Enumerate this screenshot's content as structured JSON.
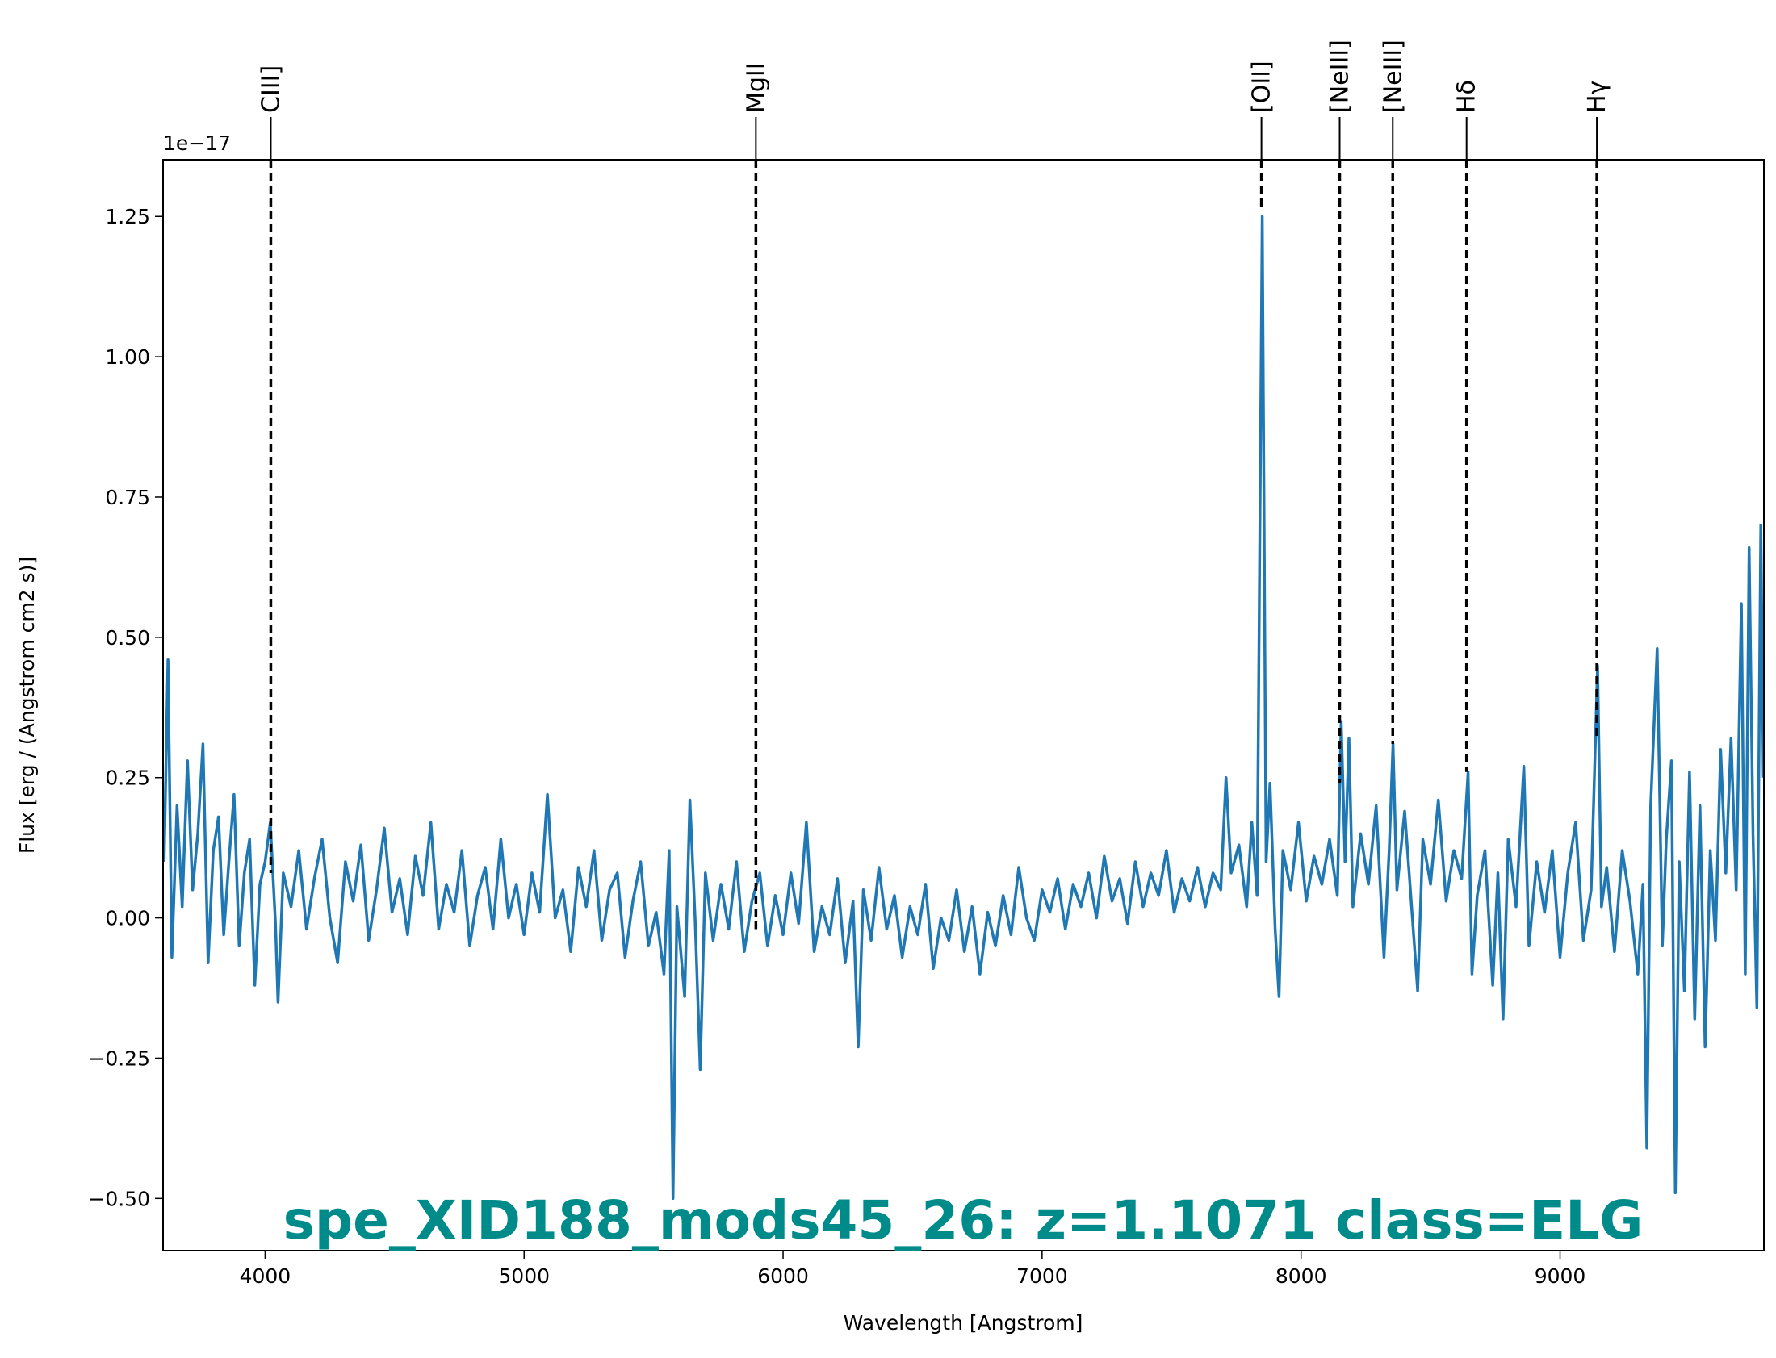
{
  "chart_data": {
    "type": "line",
    "title": "spe_XID188_mods45_26: z=1.1071 class=ELG",
    "xlabel": "Wavelength [Angstrom]",
    "ylabel": "Flux [erg / (Angstrom cm2 s)]",
    "y_offset_label": "1e−17",
    "color": "#1f77b4",
    "title_color": "#008b8b",
    "xlim": [
      3606,
      9787
    ],
    "ylim": [
      -0.593,
      1.351
    ],
    "xticks": [
      4000,
      5000,
      6000,
      7000,
      8000,
      9000
    ],
    "yticks": [
      {
        "value": -0.5,
        "label": "−0.50"
      },
      {
        "value": -0.25,
        "label": "−0.25"
      },
      {
        "value": 0,
        "label": "0.00"
      },
      {
        "value": 0.25,
        "label": "0.25"
      },
      {
        "value": 0.5,
        "label": "0.50"
      },
      {
        "value": 0.75,
        "label": "0.75"
      },
      {
        "value": 1,
        "label": "1.00"
      },
      {
        "value": 1.25,
        "label": "1.25"
      }
    ],
    "lines": [
      {
        "label": "CIII]",
        "x": 4022,
        "ymin": 0.08
      },
      {
        "label": "MgII",
        "x": 5895,
        "ymin": -0.02
      },
      {
        "label": "[OII]",
        "x": 7847,
        "ymin": 1.26
      },
      {
        "label": "[NeIII]",
        "x": 8149,
        "ymin": 0.24
      },
      {
        "label": "[NeIII]",
        "x": 8354,
        "ymin": 0.31
      },
      {
        "label": "Hδ",
        "x": 8639,
        "ymin": 0.26
      },
      {
        "label": "Hγ",
        "x": 9142,
        "ymin": 0.32
      }
    ],
    "x": [
      3610,
      3625,
      3640,
      3660,
      3680,
      3700,
      3720,
      3740,
      3760,
      3780,
      3800,
      3820,
      3840,
      3860,
      3880,
      3900,
      3920,
      3940,
      3960,
      3980,
      4000,
      4020,
      4040,
      4050,
      4070,
      4100,
      4130,
      4160,
      4190,
      4220,
      4250,
      4280,
      4310,
      4340,
      4370,
      4400,
      4430,
      4460,
      4490,
      4520,
      4550,
      4580,
      4610,
      4640,
      4670,
      4700,
      4730,
      4760,
      4790,
      4820,
      4850,
      4880,
      4910,
      4940,
      4970,
      5000,
      5030,
      5060,
      5090,
      5120,
      5150,
      5180,
      5210,
      5240,
      5270,
      5300,
      5330,
      5360,
      5390,
      5420,
      5450,
      5480,
      5510,
      5540,
      5560,
      5575,
      5590,
      5620,
      5640,
      5660,
      5680,
      5700,
      5730,
      5760,
      5790,
      5820,
      5850,
      5880,
      5910,
      5940,
      5970,
      6000,
      6030,
      6060,
      6090,
      6120,
      6150,
      6180,
      6210,
      6240,
      6270,
      6290,
      6310,
      6340,
      6370,
      6400,
      6430,
      6460,
      6490,
      6520,
      6550,
      6580,
      6610,
      6640,
      6670,
      6700,
      6730,
      6760,
      6790,
      6820,
      6850,
      6880,
      6910,
      6940,
      6970,
      7000,
      7030,
      7060,
      7090,
      7120,
      7150,
      7180,
      7210,
      7240,
      7270,
      7300,
      7330,
      7360,
      7390,
      7420,
      7450,
      7480,
      7510,
      7540,
      7570,
      7600,
      7630,
      7660,
      7690,
      7710,
      7730,
      7760,
      7790,
      7810,
      7830,
      7850,
      7865,
      7880,
      7900,
      7915,
      7930,
      7960,
      7990,
      8020,
      8050,
      8080,
      8110,
      8140,
      8155,
      8170,
      8185,
      8200,
      8230,
      8260,
      8290,
      8320,
      8340,
      8355,
      8370,
      8400,
      8430,
      8450,
      8470,
      8500,
      8530,
      8560,
      8590,
      8620,
      8645,
      8660,
      8680,
      8710,
      8740,
      8760,
      8780,
      8800,
      8830,
      8860,
      8880,
      8910,
      8940,
      8970,
      9000,
      9030,
      9060,
      9090,
      9120,
      9145,
      9160,
      9180,
      9210,
      9240,
      9270,
      9300,
      9320,
      9335,
      9350,
      9375,
      9395,
      9410,
      9430,
      9445,
      9460,
      9480,
      9500,
      9520,
      9540,
      9560,
      9580,
      9600,
      9620,
      9640,
      9660,
      9680,
      9700,
      9715,
      9730,
      9745,
      9760,
      9775,
      9785
    ],
    "values": [
      0.1,
      0.46,
      -0.07,
      0.2,
      0.02,
      0.28,
      0.05,
      0.15,
      0.31,
      -0.08,
      0.12,
      0.18,
      -0.03,
      0.1,
      0.22,
      -0.05,
      0.08,
      0.14,
      -0.12,
      0.06,
      0.1,
      0.17,
      -0.01,
      -0.15,
      0.08,
      0.02,
      0.12,
      -0.02,
      0.07,
      0.14,
      0.0,
      -0.08,
      0.1,
      0.03,
      0.13,
      -0.04,
      0.05,
      0.16,
      0.01,
      0.07,
      -0.03,
      0.11,
      0.04,
      0.17,
      -0.02,
      0.06,
      0.01,
      0.12,
      -0.05,
      0.04,
      0.09,
      -0.02,
      0.14,
      0.0,
      0.06,
      -0.03,
      0.08,
      0.01,
      0.22,
      0.0,
      0.05,
      -0.06,
      0.09,
      0.02,
      0.12,
      -0.04,
      0.05,
      0.08,
      -0.07,
      0.03,
      0.1,
      -0.05,
      0.01,
      -0.1,
      0.12,
      -0.5,
      0.02,
      -0.14,
      0.21,
      0.0,
      -0.27,
      0.08,
      -0.04,
      0.06,
      -0.02,
      0.1,
      -0.06,
      0.03,
      0.08,
      -0.05,
      0.04,
      -0.03,
      0.08,
      -0.01,
      0.17,
      -0.06,
      0.02,
      -0.03,
      0.07,
      -0.08,
      0.03,
      -0.23,
      0.05,
      -0.04,
      0.09,
      -0.02,
      0.04,
      -0.07,
      0.02,
      -0.03,
      0.06,
      -0.09,
      0.0,
      -0.04,
      0.05,
      -0.06,
      0.02,
      -0.1,
      0.01,
      -0.05,
      0.04,
      -0.03,
      0.09,
      0.0,
      -0.04,
      0.05,
      0.01,
      0.07,
      -0.02,
      0.06,
      0.02,
      0.08,
      0.0,
      0.11,
      0.03,
      0.07,
      -0.01,
      0.1,
      0.02,
      0.08,
      0.04,
      0.12,
      0.01,
      0.07,
      0.03,
      0.09,
      0.02,
      0.08,
      0.05,
      0.25,
      0.08,
      0.13,
      0.02,
      0.17,
      0.04,
      1.25,
      0.1,
      0.24,
      -0.02,
      -0.14,
      0.12,
      0.05,
      0.17,
      0.03,
      0.11,
      0.06,
      0.14,
      0.04,
      0.35,
      0.1,
      0.32,
      0.02,
      0.15,
      0.06,
      0.2,
      -0.07,
      0.12,
      0.31,
      0.05,
      0.19,
      0.0,
      -0.13,
      0.14,
      0.06,
      0.21,
      0.03,
      0.12,
      0.07,
      0.26,
      -0.1,
      0.04,
      0.12,
      -0.12,
      0.08,
      -0.18,
      0.14,
      0.02,
      0.27,
      -0.05,
      0.1,
      0.01,
      0.12,
      -0.07,
      0.08,
      0.17,
      -0.04,
      0.05,
      0.45,
      0.02,
      0.09,
      -0.06,
      0.12,
      0.03,
      -0.1,
      0.06,
      -0.41,
      0.2,
      0.48,
      -0.05,
      0.14,
      0.28,
      -0.49,
      0.1,
      -0.13,
      0.26,
      -0.18,
      0.2,
      -0.23,
      0.12,
      -0.04,
      0.3,
      0.08,
      0.32,
      0.05,
      0.56,
      -0.1,
      0.66,
      0.15,
      -0.16,
      0.7,
      0.25
    ]
  }
}
